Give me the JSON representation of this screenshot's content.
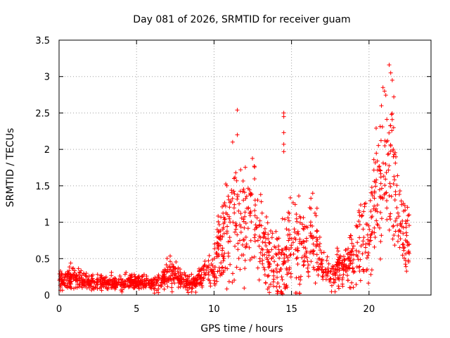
{
  "chart_data": {
    "type": "scatter",
    "title": "Day 081 of 2026, SRMTID for receiver guam",
    "xlabel": "GPS time / hours",
    "ylabel": "SRMTID / TECUs",
    "xlim": [
      0,
      24
    ],
    "ylim": [
      0,
      3.5
    ],
    "x_ticks": [
      0,
      5,
      10,
      15,
      20
    ],
    "y_ticks": [
      0,
      0.5,
      1,
      1.5,
      2,
      2.5,
      3,
      3.5
    ],
    "x_tick_labels": [
      "0",
      "5",
      "10",
      "15",
      "20"
    ],
    "y_tick_labels": [
      "0",
      "0.5",
      "1",
      "1.5",
      "2",
      "2.5",
      "3",
      "3.5"
    ],
    "grid": true,
    "marker": "+",
    "series": [
      {
        "name": "SRMTID",
        "color": "#ff0000",
        "envelope": [
          [
            0.0,
            0.2,
            0.08
          ],
          [
            0.5,
            0.2,
            0.08
          ],
          [
            1.0,
            0.22,
            0.08
          ],
          [
            1.5,
            0.2,
            0.07
          ],
          [
            2.0,
            0.18,
            0.06
          ],
          [
            3.0,
            0.17,
            0.05
          ],
          [
            4.0,
            0.16,
            0.05
          ],
          [
            5.0,
            0.2,
            0.05
          ],
          [
            6.0,
            0.15,
            0.05
          ],
          [
            6.5,
            0.15,
            0.05
          ],
          [
            7.0,
            0.35,
            0.12
          ],
          [
            7.5,
            0.3,
            0.08
          ],
          [
            8.0,
            0.15,
            0.06
          ],
          [
            9.0,
            0.2,
            0.07
          ],
          [
            10.0,
            0.4,
            0.15
          ],
          [
            10.5,
            0.75,
            0.3
          ],
          [
            11.0,
            0.9,
            0.4
          ],
          [
            11.5,
            1.1,
            0.45
          ],
          [
            12.0,
            1.0,
            0.4
          ],
          [
            12.5,
            1.1,
            0.4
          ],
          [
            13.0,
            0.8,
            0.3
          ],
          [
            13.5,
            0.55,
            0.2
          ],
          [
            14.0,
            0.45,
            0.25
          ],
          [
            14.5,
            0.35,
            0.3
          ],
          [
            15.0,
            0.7,
            0.3
          ],
          [
            15.5,
            0.75,
            0.35
          ],
          [
            16.0,
            0.6,
            0.3
          ],
          [
            16.5,
            0.8,
            0.3
          ],
          [
            17.0,
            0.35,
            0.12
          ],
          [
            17.5,
            0.3,
            0.1
          ],
          [
            18.0,
            0.35,
            0.12
          ],
          [
            18.5,
            0.4,
            0.15
          ],
          [
            19.0,
            0.55,
            0.2
          ],
          [
            19.5,
            0.8,
            0.3
          ],
          [
            20.0,
            0.75,
            0.3
          ],
          [
            20.5,
            1.5,
            0.5
          ],
          [
            21.0,
            1.8,
            0.5
          ],
          [
            21.5,
            1.7,
            0.55
          ],
          [
            22.0,
            1.0,
            0.3
          ],
          [
            22.5,
            0.75,
            0.2
          ]
        ],
        "range": [
          0,
          22.6
        ],
        "outliers": [
          [
            11.5,
            2.54
          ],
          [
            11.2,
            2.1
          ],
          [
            11.5,
            2.2
          ],
          [
            14.5,
            2.5
          ],
          [
            14.5,
            2.45
          ],
          [
            14.5,
            2.23
          ],
          [
            14.5,
            2.07
          ],
          [
            14.5,
            1.97
          ],
          [
            21.3,
            3.16
          ],
          [
            21.4,
            3.05
          ],
          [
            21.5,
            2.95
          ],
          [
            21.0,
            2.8
          ],
          [
            20.8,
            2.6
          ],
          [
            21.6,
            2.72
          ],
          [
            20.9,
            2.85
          ]
        ],
        "approx_points": 1600
      }
    ]
  }
}
